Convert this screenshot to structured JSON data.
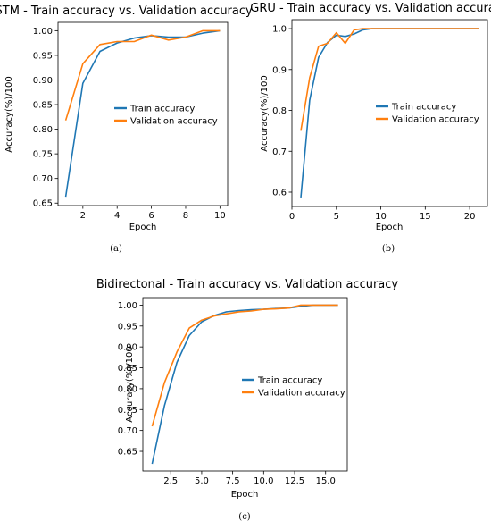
{
  "colors": {
    "train": "#1f77b4",
    "validation": "#ff7f0e"
  },
  "chart_data": [
    {
      "type": "line",
      "title": "LSTM - Train accuracy vs. Validation accuracy",
      "xlabel": "Epoch",
      "ylabel": "Accuracy(%)/100",
      "caption": "(a)",
      "xlim": [
        0.55,
        10.45
      ],
      "ylim": [
        0.645,
        1.017
      ],
      "xticks": [
        2,
        4,
        6,
        8,
        10
      ],
      "xtick_labels": [
        "2",
        "4",
        "6",
        "8",
        "10"
      ],
      "yticks": [
        0.65,
        0.7,
        0.75,
        0.8,
        0.85,
        0.9,
        0.95,
        1.0
      ],
      "ytick_labels": [
        "0.65",
        "0.70",
        "0.75",
        "0.80",
        "0.85",
        "0.90",
        "0.95",
        "1.00"
      ],
      "legend": "center-right",
      "series": [
        {
          "name": "Train accuracy",
          "x": [
            1,
            2,
            3,
            4,
            5,
            6,
            7,
            8,
            9,
            10
          ],
          "y": [
            0.663,
            0.893,
            0.958,
            0.975,
            0.985,
            0.99,
            0.987,
            0.987,
            0.995,
            1.0
          ]
        },
        {
          "name": "Validation accuracy",
          "x": [
            1,
            2,
            3,
            4,
            5,
            6,
            7,
            8,
            9,
            10
          ],
          "y": [
            0.818,
            0.933,
            0.972,
            0.978,
            0.978,
            0.991,
            0.981,
            0.987,
            1.0,
            1.0
          ]
        }
      ]
    },
    {
      "type": "line",
      "title": "GRU - Train accuracy vs. Validation accuracy",
      "xlabel": "Epoch",
      "ylabel": "Accuracy(%)/100",
      "caption": "(b)",
      "xlim": [
        0,
        22
      ],
      "ylim": [
        0.565,
        1.022
      ],
      "xticks": [
        0,
        5,
        10,
        15,
        20
      ],
      "xtick_labels": [
        "0",
        "5",
        "10",
        "15",
        "20"
      ],
      "yticks": [
        0.6,
        0.7,
        0.8,
        0.9,
        1.0
      ],
      "ytick_labels": [
        "0.6",
        "0.7",
        "0.8",
        "0.9",
        "1.0"
      ],
      "legend": "center-right",
      "series": [
        {
          "name": "Train accuracy",
          "x": [
            1,
            2,
            3,
            4,
            5,
            6,
            7,
            8,
            9,
            10,
            11,
            12,
            13,
            14,
            15,
            16,
            17,
            18,
            19,
            20,
            21
          ],
          "y": [
            0.587,
            0.825,
            0.93,
            0.966,
            0.984,
            0.981,
            0.987,
            0.997,
            1.0,
            1.0,
            1.0,
            1.0,
            1.0,
            1.0,
            1.0,
            1.0,
            1.0,
            1.0,
            1.0,
            1.0,
            1.0
          ]
        },
        {
          "name": "Validation accuracy",
          "x": [
            1,
            2,
            3,
            4,
            5,
            6,
            7,
            8,
            9,
            10,
            11,
            12,
            13,
            14,
            15,
            16,
            17,
            18,
            19,
            20,
            21
          ],
          "y": [
            0.75,
            0.88,
            0.957,
            0.964,
            0.99,
            0.964,
            0.997,
            1.0,
            1.0,
            1.0,
            1.0,
            1.0,
            1.0,
            1.0,
            1.0,
            1.0,
            1.0,
            1.0,
            1.0,
            1.0,
            1.0
          ]
        }
      ]
    },
    {
      "type": "line",
      "title": "Bidirectonal - Train accuracy vs. Validation accuracy",
      "xlabel": "Epoch",
      "ylabel": "Accuracy(%)/100",
      "caption": "(c)",
      "xlim": [
        0.25,
        16.75
      ],
      "ylim": [
        0.603,
        1.018
      ],
      "xticks": [
        2.5,
        5.0,
        7.5,
        10.0,
        12.5,
        15.0
      ],
      "xtick_labels": [
        "2.5",
        "5.0",
        "7.5",
        "10.0",
        "12.5",
        "15.0"
      ],
      "yticks": [
        0.65,
        0.7,
        0.75,
        0.8,
        0.85,
        0.9,
        0.95,
        1.0
      ],
      "ytick_labels": [
        "0.65",
        "0.70",
        "0.75",
        "0.80",
        "0.85",
        "0.90",
        "0.95",
        "1.00"
      ],
      "legend": "center-right",
      "series": [
        {
          "name": "Train accuracy",
          "x": [
            1,
            2,
            3,
            4,
            5,
            6,
            7,
            8,
            9,
            10,
            11,
            12,
            13,
            14,
            15,
            16
          ],
          "y": [
            0.62,
            0.76,
            0.863,
            0.927,
            0.96,
            0.975,
            0.984,
            0.987,
            0.989,
            0.99,
            0.992,
            0.993,
            0.997,
            1.0,
            1.0,
            1.0
          ]
        },
        {
          "name": "Validation accuracy",
          "x": [
            1,
            2,
            3,
            4,
            5,
            6,
            7,
            8,
            9,
            10,
            11,
            12,
            13,
            14,
            15,
            16
          ],
          "y": [
            0.71,
            0.815,
            0.888,
            0.945,
            0.964,
            0.974,
            0.979,
            0.984,
            0.986,
            0.99,
            0.991,
            0.993,
            1.0,
            1.0,
            1.0,
            1.0
          ]
        }
      ]
    }
  ]
}
